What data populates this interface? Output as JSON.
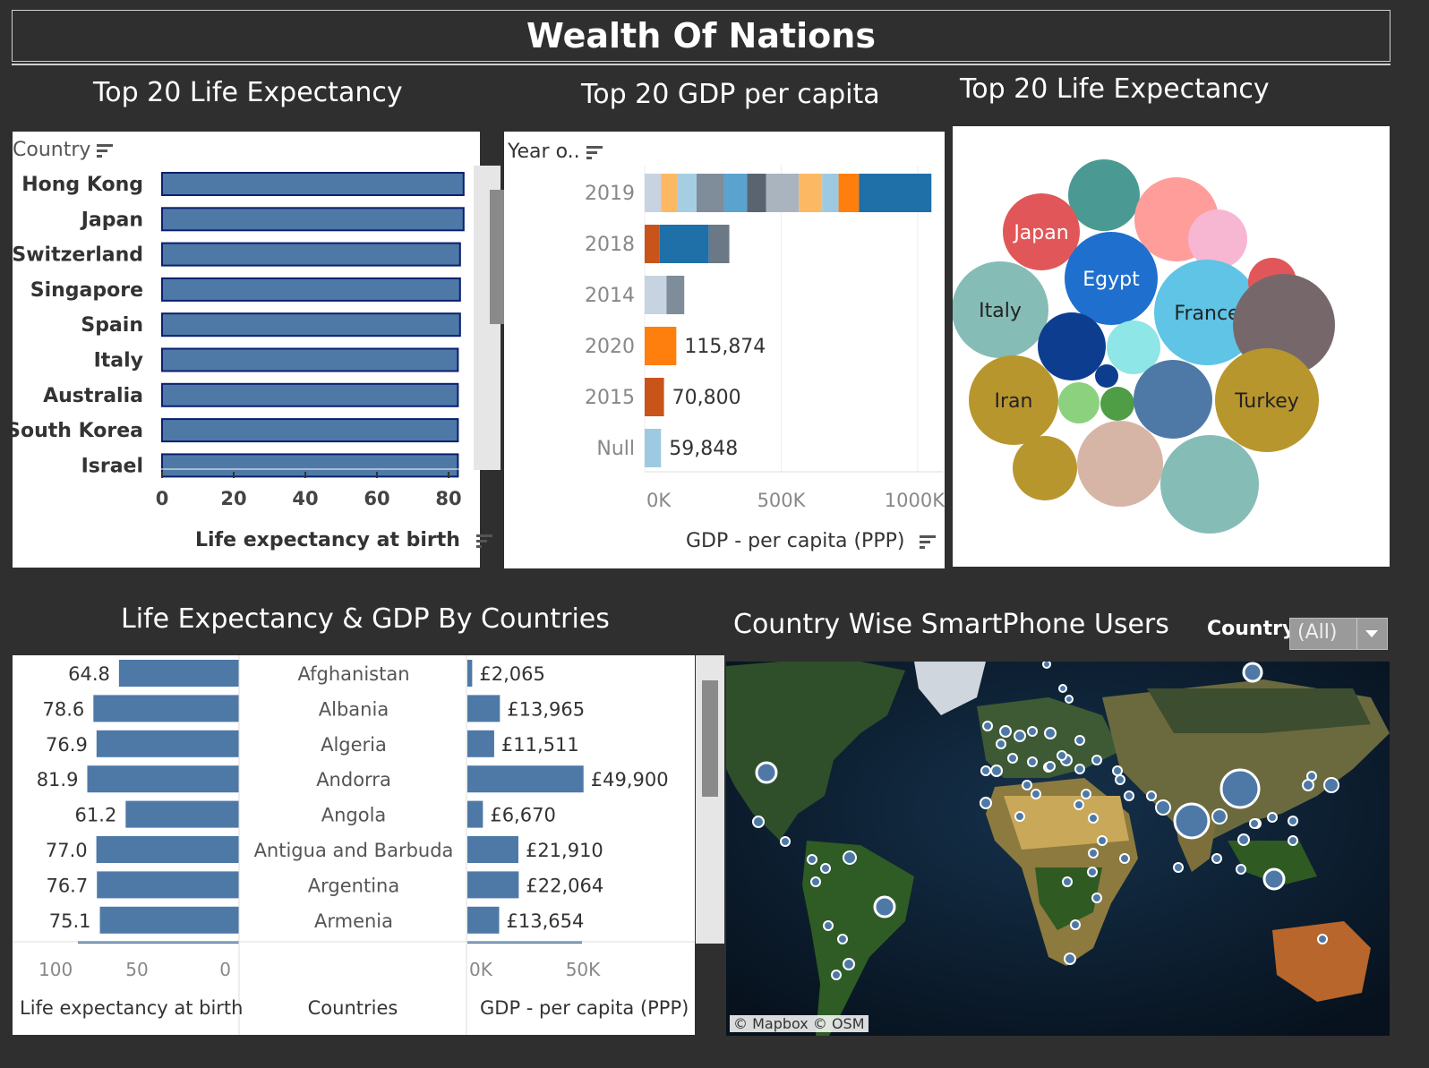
{
  "dashboard": {
    "title": "Wealth Of Nations"
  },
  "colors": {
    "bar": "#4e79a7",
    "dark": "#2f2f2f"
  },
  "panel1": {
    "title": "Top 20 Life Expectancy",
    "header": "Country",
    "xlabel": "Life expectancy at birth",
    "chart_data": {
      "type": "bar",
      "title": "Top 20 Life Expectancy",
      "xlabel": "Life expectancy at birth",
      "ylabel": "Country",
      "xlim": [
        0,
        85
      ],
      "categories": [
        "Hong Kong",
        "Japan",
        "Switzerland",
        "Singapore",
        "Spain",
        "Italy",
        "Australia",
        "South Korea",
        "Israel"
      ],
      "values": [
        84.2,
        84.2,
        83.2,
        83.2,
        83.2,
        82.6,
        82.6,
        82.6,
        82.6
      ],
      "ticks": [
        "0",
        "20",
        "40",
        "60",
        "80"
      ]
    }
  },
  "panel2": {
    "title": "Top 20 GDP per capita",
    "header": "Year o..",
    "xlabel": "GDP - per capita (PPP)",
    "chart_data": {
      "type": "bar",
      "stacked": true,
      "title": "Top 20 GDP per capita",
      "xlabel": "GDP - per capita (PPP)",
      "ylabel": "Year o..",
      "xlim": [
        0,
        1050000
      ],
      "ticks": [
        "0K",
        "500K",
        "1000K"
      ],
      "categories": [
        "2019",
        "2018",
        "2014",
        "2020",
        "2015",
        "Null"
      ],
      "totals": [
        1050000,
        310000,
        145000,
        115874,
        70800,
        59848
      ],
      "labels": [
        "",
        "",
        "",
        "115,874",
        "70,800",
        "59,848"
      ],
      "segments": [
        [
          [
            60000,
            "#c7d3e0"
          ],
          [
            60000,
            "#fdb863"
          ],
          [
            70000,
            "#a6cee3"
          ],
          [
            100000,
            "#7f8c99"
          ],
          [
            85000,
            "#5ba3cf"
          ],
          [
            70000,
            "#5a6470"
          ],
          [
            120000,
            "#a9b4bf"
          ],
          [
            85000,
            "#fdb863"
          ],
          [
            60000,
            "#9ecae1"
          ],
          [
            75000,
            "#ff7f0e"
          ],
          [
            265000,
            "#1f6fa8"
          ]
        ],
        [
          [
            55000,
            "#c9541a"
          ],
          [
            180000,
            "#1f6fa8"
          ],
          [
            75000,
            "#6b7885"
          ]
        ],
        [
          [
            80000,
            "#c7d3e0"
          ],
          [
            65000,
            "#7f8c99"
          ]
        ],
        [
          [
            115874,
            "#ff7f0e"
          ]
        ],
        [
          [
            70800,
            "#c9541a"
          ]
        ],
        [
          [
            59848,
            "#9ecae1"
          ]
        ]
      ]
    }
  },
  "panel3": {
    "title": "Top 20 Life Expectancy",
    "chart_data": {
      "type": "bubble",
      "title": "Top 20 Life Expectancy",
      "labeled": [
        "Japan",
        "Egypt",
        "Italy",
        "France",
        "Iran",
        "Turkey"
      ],
      "bubbles": [
        {
          "label": "",
          "color": "#4a9a93"
        },
        {
          "label": "Japan",
          "color": "#e15759"
        },
        {
          "label": "",
          "color": "#ff9d9a"
        },
        {
          "label": "",
          "color": "#f7b6d2"
        },
        {
          "label": "Egypt",
          "color": "#1f6fce"
        },
        {
          "label": "Italy",
          "color": "#86bcb6"
        },
        {
          "label": "France",
          "color": "#5fc4e6"
        },
        {
          "label": "",
          "color": "#e15759"
        },
        {
          "label": "",
          "color": "#76686a"
        },
        {
          "label": "",
          "color": "#0d3d8f"
        },
        {
          "label": "",
          "color": "#8ee6e6"
        },
        {
          "label": "",
          "color": "#0d3d8f"
        },
        {
          "label": "Iran",
          "color": "#b8962e"
        },
        {
          "label": "",
          "color": "#8cd17d"
        },
        {
          "label": "",
          "color": "#4f9d45"
        },
        {
          "label": "",
          "color": "#4e79a7"
        },
        {
          "label": "Turkey",
          "color": "#b8962e"
        },
        {
          "label": "",
          "color": "#b8962e"
        },
        {
          "label": "",
          "color": "#d7b5a6"
        },
        {
          "label": "",
          "color": "#86bcb6"
        }
      ]
    }
  },
  "panel4": {
    "title": "Life Expectancy & GDP By Countries",
    "col_left": "Life expectancy at birth",
    "col_mid": "Countries",
    "col_right": "GDP - per capita (PPP)",
    "left_ticks": [
      "100",
      "50",
      "0"
    ],
    "right_ticks": [
      "0K",
      "50K"
    ],
    "chart_data": {
      "type": "table",
      "countries": [
        "Afghanistan",
        "Albania",
        "Algeria",
        "Andorra",
        "Angola",
        "Antigua and Barbuda",
        "Argentina",
        "Armenia"
      ],
      "life_expectancy": [
        64.8,
        78.6,
        76.9,
        81.9,
        61.2,
        77.0,
        76.7,
        75.1
      ],
      "life_expectancy_labels": [
        "64.8",
        "78.6",
        "76.9",
        "81.9",
        "61.2",
        "77.0",
        "76.7",
        "75.1"
      ],
      "gdp": [
        2065,
        13965,
        11511,
        49900,
        6670,
        21910,
        22064,
        13654
      ],
      "gdp_labels": [
        "£2,065",
        "£13,965",
        "£11,511",
        "£49,900",
        "£6,670",
        "£21,910",
        "£22,064",
        "£13,654"
      ],
      "life_xlim": [
        0,
        100
      ],
      "gdp_xlim": [
        0,
        50000
      ]
    }
  },
  "panel5": {
    "title": "Country Wise SmartPhone Users",
    "filter_label": "Country",
    "filter_value": "(All)",
    "attribution": "© Mapbox © OSM"
  }
}
